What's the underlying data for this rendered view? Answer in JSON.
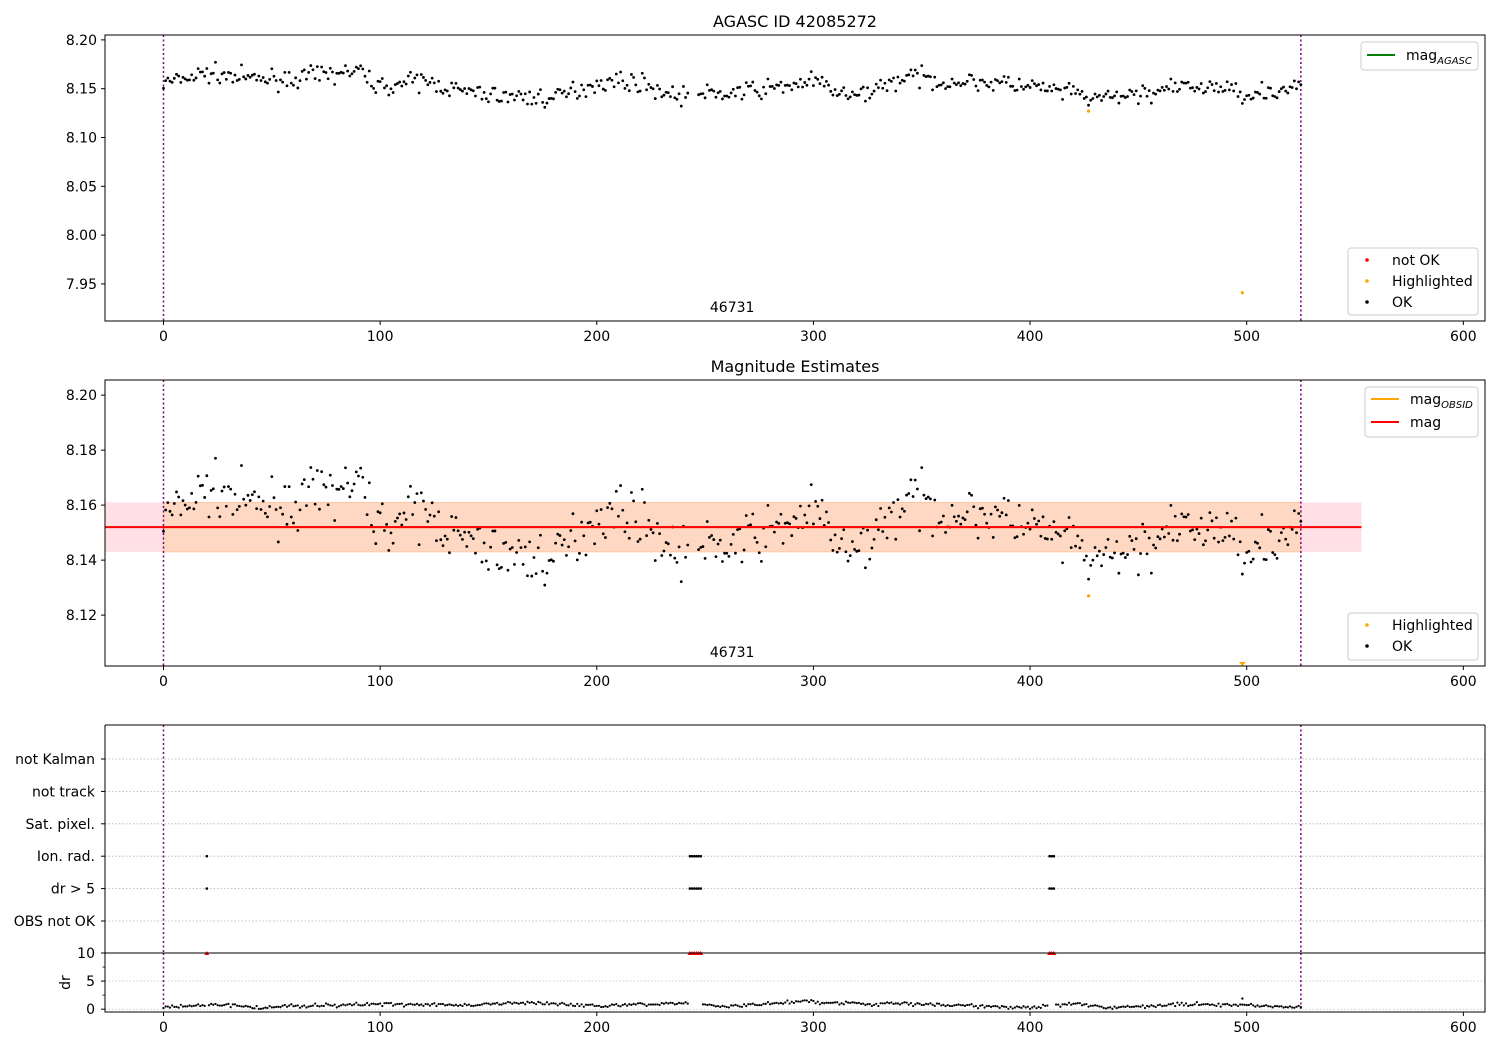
{
  "colors": {
    "ok": "#000000",
    "highlighted": "#ffa500",
    "not_ok": "#ff0000",
    "mag_agasc": "#008000",
    "mag_obsid": "#ffa500",
    "mag": "#ff0000",
    "band_inner": "#ffd8c4",
    "band_outer": "#ffe0e6",
    "obs_boundary": "#800080",
    "grid": "#b0b0b0"
  },
  "chart_data": [
    {
      "type": "scatter",
      "title": "AGASC ID 42085272",
      "xlim": [
        -27,
        610
      ],
      "ylim": [
        7.912,
        8.205
      ],
      "xticks": [
        0,
        100,
        200,
        300,
        400,
        500,
        600
      ],
      "yticks": [
        7.95,
        8.0,
        8.05,
        8.1,
        8.15,
        8.2
      ],
      "ytick_labels": [
        "7.95",
        "8.00",
        "8.05",
        "8.10",
        "8.15",
        "8.20"
      ],
      "obsid_label": "46731",
      "obs_boundaries": [
        0,
        525
      ],
      "line_legend": {
        "name": "mag",
        "subscript": "AGASC",
        "color": "#008000",
        "placement": "upper right"
      },
      "marker_legend": {
        "placement": "lower right",
        "entries": [
          {
            "label": "not OK",
            "color": "#ff0000"
          },
          {
            "label": "Highlighted",
            "color": "#ffa500"
          },
          {
            "label": "OK",
            "color": "#000000"
          }
        ]
      },
      "highlighted_points": [
        [
          427,
          8.127
        ],
        [
          498,
          7.941
        ]
      ],
      "ok_series": {
        "n": 526,
        "skip": [
          [
            243,
            246
          ]
        ],
        "anchors": [
          [
            0,
            8.155
          ],
          [
            20,
            8.166
          ],
          [
            40,
            8.16
          ],
          [
            60,
            8.16
          ],
          [
            80,
            8.166
          ],
          [
            90,
            8.168
          ],
          [
            100,
            8.152
          ],
          [
            120,
            8.158
          ],
          [
            140,
            8.146
          ],
          [
            160,
            8.142
          ],
          [
            180,
            8.14
          ],
          [
            200,
            8.156
          ],
          [
            210,
            8.158
          ],
          [
            220,
            8.156
          ],
          [
            235,
            8.143
          ],
          [
            260,
            8.145
          ],
          [
            280,
            8.15
          ],
          [
            300,
            8.158
          ],
          [
            318,
            8.14
          ],
          [
            330,
            8.152
          ],
          [
            345,
            8.163
          ],
          [
            360,
            8.157
          ],
          [
            380,
            8.157
          ],
          [
            400,
            8.152
          ],
          [
            420,
            8.145
          ],
          [
            430,
            8.139
          ],
          [
            445,
            8.143
          ],
          [
            470,
            8.151
          ],
          [
            485,
            8.152
          ],
          [
            500,
            8.145
          ],
          [
            525,
            8.151
          ]
        ],
        "noise": 0.0045
      }
    },
    {
      "type": "scatter",
      "title": "Magnitude Estimates",
      "xlim": [
        -27,
        610
      ],
      "ylim": [
        8.1015,
        8.2055
      ],
      "xticks": [
        0,
        100,
        200,
        300,
        400,
        500,
        600
      ],
      "yticks": [
        8.12,
        8.14,
        8.16,
        8.18,
        8.2
      ],
      "ytick_labels": [
        "8.12",
        "8.14",
        "8.16",
        "8.18",
        "8.20"
      ],
      "obsid_label": "46731",
      "obs_boundaries": [
        0,
        525
      ],
      "mag_obsid": {
        "value": 8.152,
        "band": [
          8.143,
          8.161
        ],
        "x_range": [
          0,
          525
        ]
      },
      "mag": {
        "value": 8.152,
        "band": [
          8.143,
          8.161
        ],
        "x_range": [
          -27,
          553
        ]
      },
      "line_legend": {
        "placement": "upper right",
        "entries": [
          {
            "name": "mag",
            "subscript": "OBSID",
            "color": "#ffa500"
          },
          {
            "name": "mag",
            "subscript": "",
            "color": "#ff0000"
          }
        ]
      },
      "marker_legend": {
        "placement": "lower right",
        "entries": [
          {
            "label": "Highlighted",
            "color": "#ffa500"
          },
          {
            "label": "OK",
            "color": "#000000"
          }
        ]
      },
      "highlighted_points": [
        [
          427,
          8.127
        ]
      ],
      "offscale_points": [
        [
          498,
          8.1015
        ]
      ]
    },
    {
      "type": "scatter",
      "title": "",
      "xlim": [
        -27,
        610
      ],
      "xticks": [
        0,
        100,
        200,
        300,
        400,
        500,
        600
      ],
      "obs_boundaries": [
        0,
        525
      ],
      "flag_labels": [
        "OBS not OK",
        "dr > 5",
        "Ion. rad.",
        "Sat. pixel.",
        "not track",
        "not Kalman"
      ],
      "flags": {
        "dr > 5": [
          20,
          243,
          244,
          245,
          246,
          247,
          248,
          409,
          410,
          411
        ],
        "Ion. rad.": [
          20,
          243,
          244,
          245,
          246,
          247,
          248,
          409,
          410,
          411
        ]
      }
    },
    {
      "type": "scatter",
      "title": "",
      "ylabel": "dr",
      "xlim": [
        -27,
        610
      ],
      "ylim": [
        -0.5,
        10
      ],
      "xticks": [
        0,
        100,
        200,
        300,
        400,
        500,
        600
      ],
      "yticks": [
        0,
        5,
        10
      ],
      "ytick_labels": [
        "0",
        "5",
        "10"
      ],
      "obs_boundaries": [
        0,
        525
      ],
      "clipped_points": [
        20,
        243,
        244,
        245,
        246,
        247,
        248,
        409,
        410,
        411
      ],
      "outlier_points": [
        [
          498,
          1.9
        ]
      ],
      "dr_series": {
        "n": 526,
        "anchors": [
          [
            0,
            0.4
          ],
          [
            30,
            0.8
          ],
          [
            45,
            0.2
          ],
          [
            60,
            0.6
          ],
          [
            100,
            0.9
          ],
          [
            140,
            0.7
          ],
          [
            170,
            1.2
          ],
          [
            200,
            0.6
          ],
          [
            240,
            1.1
          ],
          [
            260,
            0.5
          ],
          [
            290,
            1.3
          ],
          [
            320,
            1.0
          ],
          [
            360,
            0.8
          ],
          [
            400,
            0.3
          ],
          [
            420,
            1.1
          ],
          [
            440,
            0.2
          ],
          [
            470,
            0.9
          ],
          [
            500,
            0.7
          ],
          [
            525,
            0.3
          ]
        ]
      }
    }
  ]
}
